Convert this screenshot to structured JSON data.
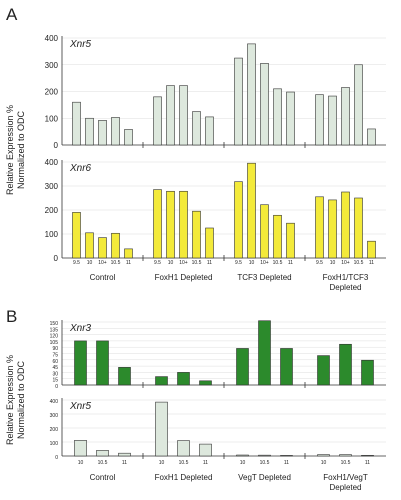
{
  "panels": [
    {
      "letter": "A",
      "ylabel_line1": "Relative Expression %",
      "ylabel_line2": "Normalized to ODC"
    },
    {
      "letter": "B",
      "ylabel_line1": "Relative Expression %",
      "ylabel_line2": "Normalized to ODC"
    }
  ],
  "colors": {
    "pale": "#dde8dd",
    "yellow": "#f3ea3a",
    "green": "#2c8a2c"
  },
  "chart_data": [
    {
      "type": "bar",
      "title": "Xnr5",
      "ylim": [
        0,
        400
      ],
      "yticks": [
        0,
        100,
        200,
        300,
        400
      ],
      "groups": [
        "Control",
        "FoxH1 Depleted",
        "TCF3 Depleted",
        "FoxH1/TCF3 Depleted"
      ],
      "categories": [
        "9.5",
        "10",
        "10+",
        "10.5",
        "11"
      ],
      "series": [
        {
          "values": [
            160,
            100,
            92,
            103,
            58
          ]
        },
        {
          "values": [
            180,
            222,
            222,
            125,
            105
          ]
        },
        {
          "values": [
            325,
            378,
            305,
            210,
            198
          ]
        },
        {
          "values": [
            188,
            183,
            215,
            300,
            60
          ]
        }
      ],
      "color": "#dde8dd"
    },
    {
      "type": "bar",
      "title": "Xnr6",
      "ylim": [
        0,
        400
      ],
      "yticks": [
        0,
        100,
        200,
        300,
        400
      ],
      "groups": [
        "Control",
        "FoxH1 Depleted",
        "TCF3 Depleted",
        "FoxH1/TCF3 Depleted"
      ],
      "categories": [
        "9.5",
        "10",
        "10+",
        "10.5",
        "11"
      ],
      "series": [
        {
          "values": [
            190,
            105,
            85,
            103,
            38
          ]
        },
        {
          "values": [
            285,
            278,
            278,
            195,
            125
          ]
        },
        {
          "values": [
            318,
            395,
            222,
            178,
            145
          ]
        },
        {
          "values": [
            255,
            242,
            275,
            250,
            70
          ]
        }
      ],
      "color": "#f3ea3a"
    },
    {
      "type": "bar",
      "title": "Xnr3",
      "ylim": [
        0,
        150
      ],
      "yticks": [
        0,
        15,
        30,
        45,
        60,
        75,
        90,
        105,
        120,
        135,
        150
      ],
      "groups": [
        "Control",
        "FoxH1 Depleted",
        "VegT Depleted",
        "FoxH1/VegT Depleted"
      ],
      "categories": [
        "10",
        "10.5",
        "11"
      ],
      "series": [
        {
          "values": [
            105,
            105,
            42
          ]
        },
        {
          "values": [
            20,
            30,
            10
          ]
        },
        {
          "values": [
            87,
            153,
            87
          ]
        },
        {
          "values": [
            70,
            97,
            59
          ]
        }
      ],
      "color": "#2c8a2c"
    },
    {
      "type": "bar",
      "title": "Xnr5",
      "ylim": [
        0,
        400
      ],
      "yticks": [
        0,
        100,
        200,
        300,
        400
      ],
      "groups": [
        "Control",
        "FoxH1 Depleted",
        "VegT Depleted",
        "FoxH1/VegT Depleted"
      ],
      "categories": [
        "10",
        "10.5",
        "11"
      ],
      "series": [
        {
          "values": [
            112,
            40,
            20
          ]
        },
        {
          "values": [
            385,
            110,
            85
          ]
        },
        {
          "values": [
            7,
            6,
            4
          ]
        },
        {
          "values": [
            10,
            10,
            5
          ]
        }
      ],
      "color": "#dde8dd"
    }
  ]
}
